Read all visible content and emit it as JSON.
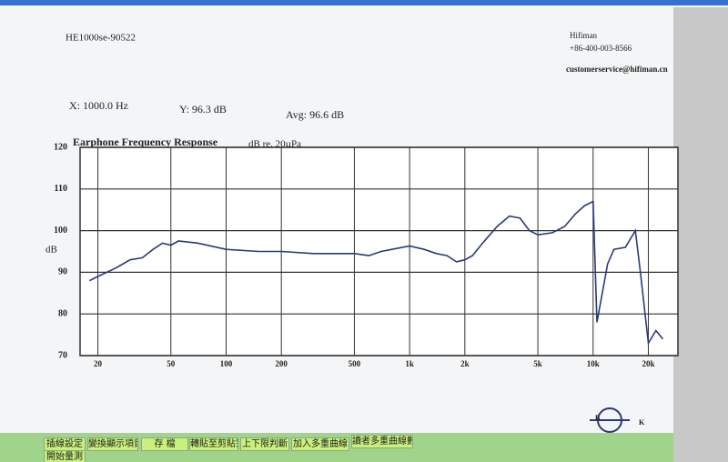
{
  "header": {
    "model": "HE1000se-90522",
    "brand": "Hifiman",
    "phone": "+86-400-003-8566",
    "email": "customerservice@hifiman.cn",
    "readout_x": "X: 1000.0 Hz",
    "readout_y": "Y: 96.3 dB",
    "readout_avg": "Avg: 96.6 dB"
  },
  "toolbar": [
    "插線設定",
    "變換顯示項目",
    "存 檔",
    "轉貼至剪貼簿",
    "上下限判斷",
    "加入多重曲線",
    "讀者多重曲線數",
    "開始量測"
  ],
  "chart_data": {
    "type": "line",
    "title": "Earphone Frequency Response",
    "subtitle": "dB re. 20µPa",
    "y_label": "dB",
    "log_x": true,
    "grid": true,
    "x": [
      18,
      20,
      25,
      30,
      35,
      40,
      45,
      50,
      55,
      70,
      100,
      150,
      200,
      300,
      400,
      500,
      600,
      700,
      800,
      1000,
      1200,
      1400,
      1600,
      1800,
      2000,
      2200,
      2500,
      3000,
      3500,
      4000,
      4500,
      5000,
      6000,
      7000,
      8000,
      9000,
      10000,
      10500,
      12000,
      13000,
      15000,
      17000,
      18000,
      20000,
      22000,
      24000
    ],
    "series": [
      {
        "name": "HE1000se-90522",
        "color": "#2b3a78",
        "values": [
          88,
          89,
          91,
          93,
          93.5,
          95.5,
          97,
          96.5,
          97.5,
          97,
          95.5,
          95,
          95,
          94.5,
          94.5,
          94.5,
          94,
          95,
          95.5,
          96.3,
          95.5,
          94.5,
          94,
          92.5,
          93,
          94,
          97,
          101,
          103.5,
          103,
          100,
          99,
          99.5,
          101,
          104,
          106,
          107,
          78,
          92,
          95.5,
          96,
          100,
          91,
          73,
          76,
          74
        ]
      }
    ],
    "xlim": [
      16,
      29000
    ],
    "ylim": [
      70,
      120
    ],
    "xticks": [
      20,
      50,
      100,
      200,
      500,
      {
        "value": 1000,
        "label": "1k"
      },
      {
        "value": 2000,
        "label": "2k"
      },
      {
        "value": 5000,
        "label": "5k"
      },
      {
        "value": 10000,
        "label": "10k"
      },
      {
        "value": 20000,
        "label": "20k"
      }
    ],
    "yticks": [
      70,
      80,
      90,
      100,
      110,
      120
    ]
  }
}
